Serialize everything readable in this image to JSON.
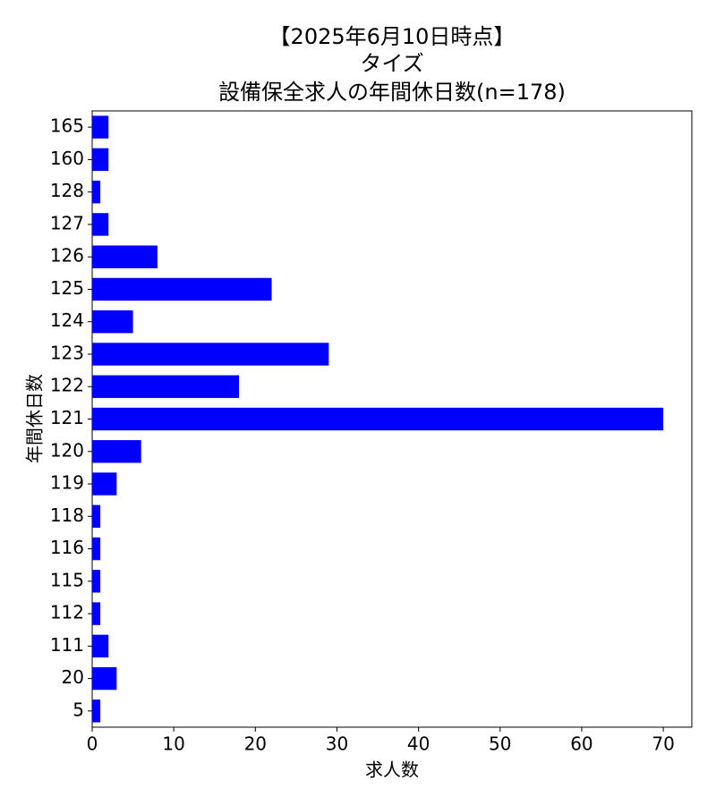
{
  "chart_data": {
    "type": "barh",
    "title_lines": [
      "【2025年6月10日時点】",
      "タイズ",
      "設備保全求人の年間休日数(n=178)"
    ],
    "xlabel": "求人数",
    "ylabel": "年間休日数",
    "categories": [
      "165",
      "160",
      "128",
      "127",
      "126",
      "125",
      "124",
      "123",
      "122",
      "121",
      "120",
      "119",
      "118",
      "116",
      "115",
      "112",
      "111",
      "20",
      "5"
    ],
    "values": [
      2,
      2,
      1,
      2,
      8,
      22,
      5,
      29,
      18,
      70,
      6,
      3,
      1,
      1,
      1,
      1,
      2,
      3,
      1
    ],
    "color": "#0000ff",
    "xlim": [
      0,
      73.5
    ],
    "xticks": [
      0,
      10,
      20,
      30,
      40,
      50,
      60,
      70
    ]
  }
}
